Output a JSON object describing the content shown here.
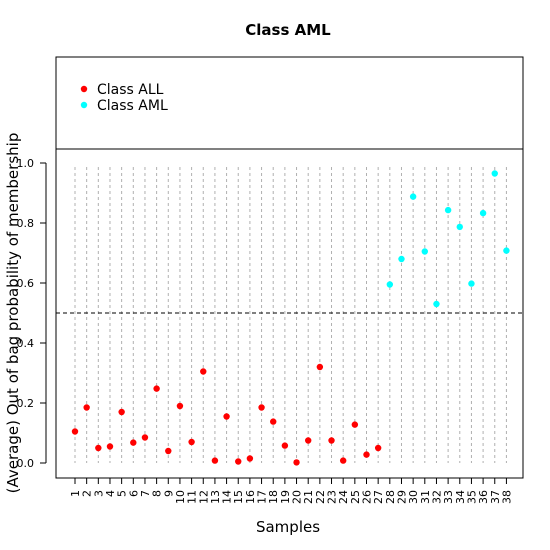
{
  "chart_data": {
    "type": "scatter",
    "title": "Class AML",
    "xlabel": "Samples",
    "ylabel": "(Average) Out of bag probability of membership",
    "ylim": [
      0,
      1
    ],
    "yticks": [
      "0.0",
      "0.2",
      "0.4",
      "0.6",
      "0.8",
      "1.0"
    ],
    "threshold": 0.5,
    "legend_position": "top-left",
    "categories": [
      "1",
      "2",
      "3",
      "4",
      "5",
      "6",
      "7",
      "8",
      "9",
      "10",
      "11",
      "12",
      "13",
      "14",
      "15",
      "16",
      "17",
      "18",
      "19",
      "20",
      "21",
      "22",
      "23",
      "24",
      "25",
      "26",
      "27",
      "28",
      "29",
      "30",
      "31",
      "32",
      "33",
      "34",
      "35",
      "36",
      "37",
      "38"
    ],
    "series": [
      {
        "name": "Class ALL",
        "color": "#ff0000",
        "x": [
          1,
          2,
          3,
          4,
          5,
          6,
          7,
          8,
          9,
          10,
          11,
          12,
          13,
          14,
          15,
          16,
          17,
          18,
          19,
          20,
          21,
          22,
          23,
          24,
          25,
          26,
          27
        ],
        "values": [
          0.105,
          0.185,
          0.05,
          0.055,
          0.17,
          0.068,
          0.085,
          0.248,
          0.04,
          0.19,
          0.07,
          0.305,
          0.008,
          0.155,
          0.005,
          0.015,
          0.185,
          0.138,
          0.058,
          0.002,
          0.075,
          0.32,
          0.075,
          0.008,
          0.128,
          0.028,
          0.05
        ]
      },
      {
        "name": "Class AML",
        "color": "#00ffff",
        "x": [
          28,
          29,
          30,
          31,
          32,
          33,
          34,
          35,
          36,
          37,
          38
        ],
        "values": [
          0.595,
          0.68,
          0.888,
          0.705,
          0.53,
          0.843,
          0.787,
          0.598,
          0.833,
          0.965,
          0.708
        ]
      }
    ]
  }
}
